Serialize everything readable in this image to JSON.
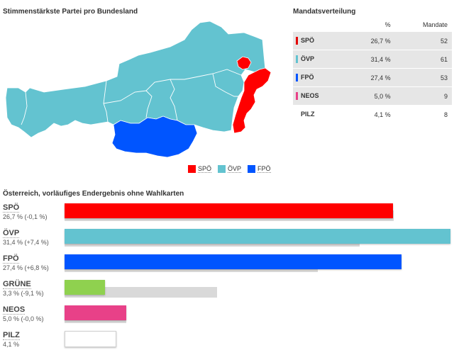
{
  "map": {
    "title": "Stimmenstärkste Partei pro Bundesland",
    "legend": [
      {
        "label": "SPÖ",
        "color": "#ff0000"
      },
      {
        "label": "ÖVP",
        "color": "#63c3d0"
      },
      {
        "label": "FPÖ",
        "color": "#0055ff"
      }
    ],
    "states": [
      {
        "name": "Vorarlberg",
        "winner": "ÖVP"
      },
      {
        "name": "Tirol",
        "winner": "ÖVP"
      },
      {
        "name": "Salzburg",
        "winner": "ÖVP"
      },
      {
        "name": "Oberösterreich",
        "winner": "ÖVP"
      },
      {
        "name": "Niederösterreich",
        "winner": "ÖVP"
      },
      {
        "name": "Steiermark",
        "winner": "ÖVP"
      },
      {
        "name": "Kärnten",
        "winner": "FPÖ"
      },
      {
        "name": "Wien",
        "winner": "SPÖ"
      },
      {
        "name": "Burgenland",
        "winner": "SPÖ"
      }
    ]
  },
  "mandate_table": {
    "title": "Mandatsverteilung",
    "headers": [
      "",
      "%",
      "Mandate"
    ],
    "rows": [
      {
        "party": "SPÖ",
        "percent": "26,7 %",
        "seats": "52",
        "color": "#e30000"
      },
      {
        "party": "ÖVP",
        "percent": "31,4 %",
        "seats": "61",
        "color": "#63c3d0"
      },
      {
        "party": "FPÖ",
        "percent": "27,4 %",
        "seats": "53",
        "color": "#0055ff"
      },
      {
        "party": "NEOS",
        "percent": "5,0 %",
        "seats": "9",
        "color": "#e84188"
      },
      {
        "party": "PILZ",
        "percent": "4,1 %",
        "seats": "8",
        "color": ""
      }
    ]
  },
  "results": {
    "title": "Österreich, vorläufiges Endergebnis ohne Wahlkarten",
    "parties": [
      {
        "name": "SPÖ",
        "label": "26,7 % (-0,1 %)",
        "color": "#ff0000"
      },
      {
        "name": "ÖVP",
        "label": "31,4 % (+7,4 %)",
        "color": "#63c3d0"
      },
      {
        "name": "FPÖ",
        "label": "27,4 % (+6,8 %)",
        "color": "#0055ff"
      },
      {
        "name": "GRÜNE",
        "label": "3,3 % (-9,1 %)",
        "color": "#8fd14f"
      },
      {
        "name": "NEOS",
        "label": "5,0 % (-0,0 %)",
        "color": "#e84188"
      },
      {
        "name": "PILZ",
        "label": "4,1 %",
        "color": "#ffffff"
      }
    ]
  },
  "chart_data": {
    "type": "bar",
    "title": "Österreich, vorläufiges Endergebnis ohne Wahlkarten",
    "categories": [
      "SPÖ",
      "ÖVP",
      "FPÖ",
      "GRÜNE",
      "NEOS",
      "PILZ"
    ],
    "series": [
      {
        "values": [
          26.7,
          31.4,
          27.4,
          3.3,
          5.0,
          4.1
        ],
        "color": "mixed"
      },
      {
        "values": [
          26.8,
          24.0,
          20.6,
          12.4,
          5.0,
          null
        ],
        "color": "#d9d9d9"
      }
    ],
    "xlim": [
      0,
      31.4
    ],
    "grid": false
  }
}
